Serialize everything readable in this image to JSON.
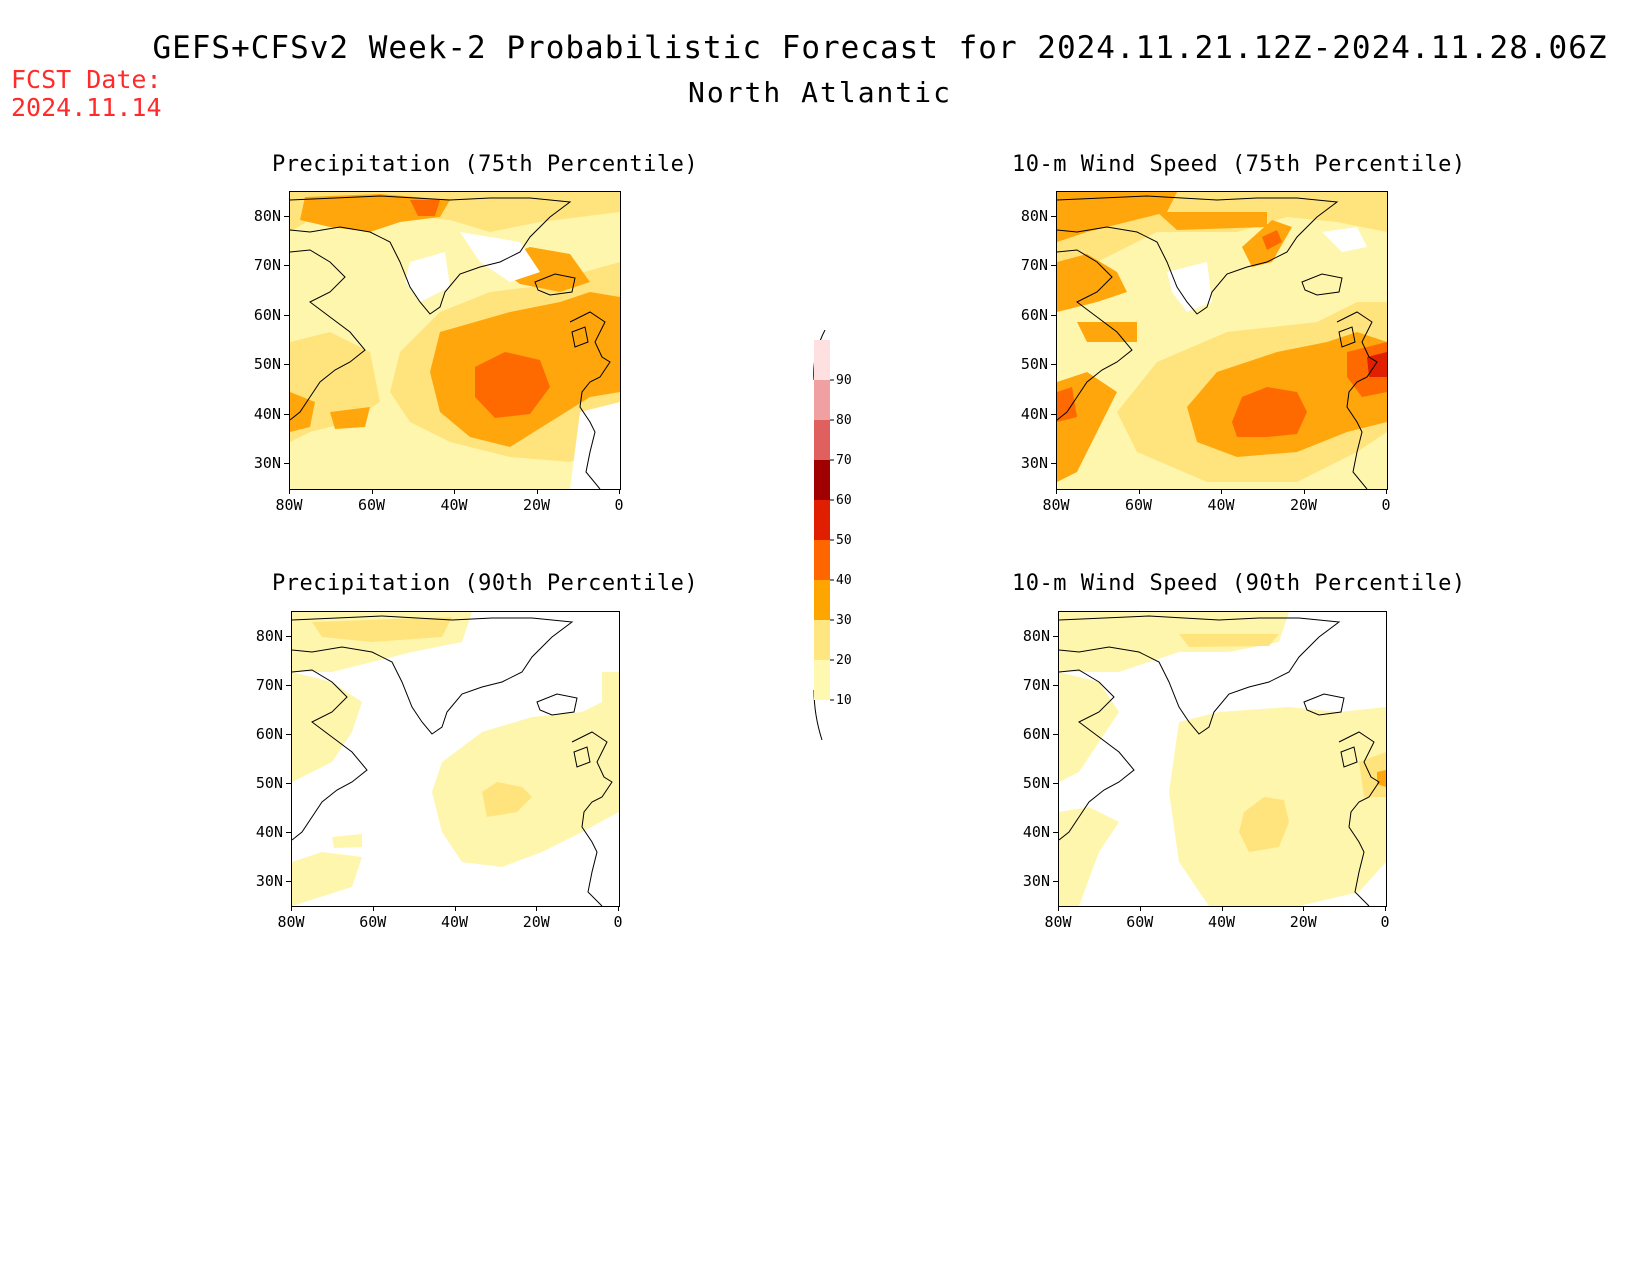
{
  "header": {
    "title": "GEFS+CFSv2 Week-2 Probabilistic Forecast for 2024.11.21.12Z-2024.11.28.06Z",
    "region": "North Atlantic",
    "fcst_date_label": "FCST Date:",
    "fcst_date_value": "2024.11.14"
  },
  "panels": [
    {
      "id": "precip75",
      "title": "Precipitation (75th Percentile)"
    },
    {
      "id": "wind75",
      "title": "10-m Wind Speed (75th Percentile)"
    },
    {
      "id": "precip90",
      "title": "Precipitation (90th Percentile)"
    },
    {
      "id": "wind90",
      "title": "10-m Wind Speed (90th Percentile)"
    }
  ],
  "axes": {
    "lat_labels": [
      "80N",
      "70N",
      "60N",
      "50N",
      "40N",
      "30N"
    ],
    "lon_labels": [
      "80W",
      "60W",
      "40W",
      "20W",
      "0"
    ]
  },
  "colorbar": {
    "levels": [
      "10",
      "20",
      "30",
      "40",
      "50",
      "60",
      "70",
      "80",
      "90"
    ],
    "colors": [
      "#fff8b0",
      "#ffe680",
      "#ffa500",
      "#ff6600",
      "#e01e00",
      "#a00000",
      "#e06060",
      "#f0a0a0",
      "#ffe0e0"
    ]
  },
  "colors": {
    "c10": "#fff6ad",
    "c20": "#ffe47e",
    "c30": "#ffa60c",
    "c40": "#ff6a00",
    "c50": "#e02000",
    "c60": "#a60000",
    "fcst_text": "#ff2a2a"
  }
}
